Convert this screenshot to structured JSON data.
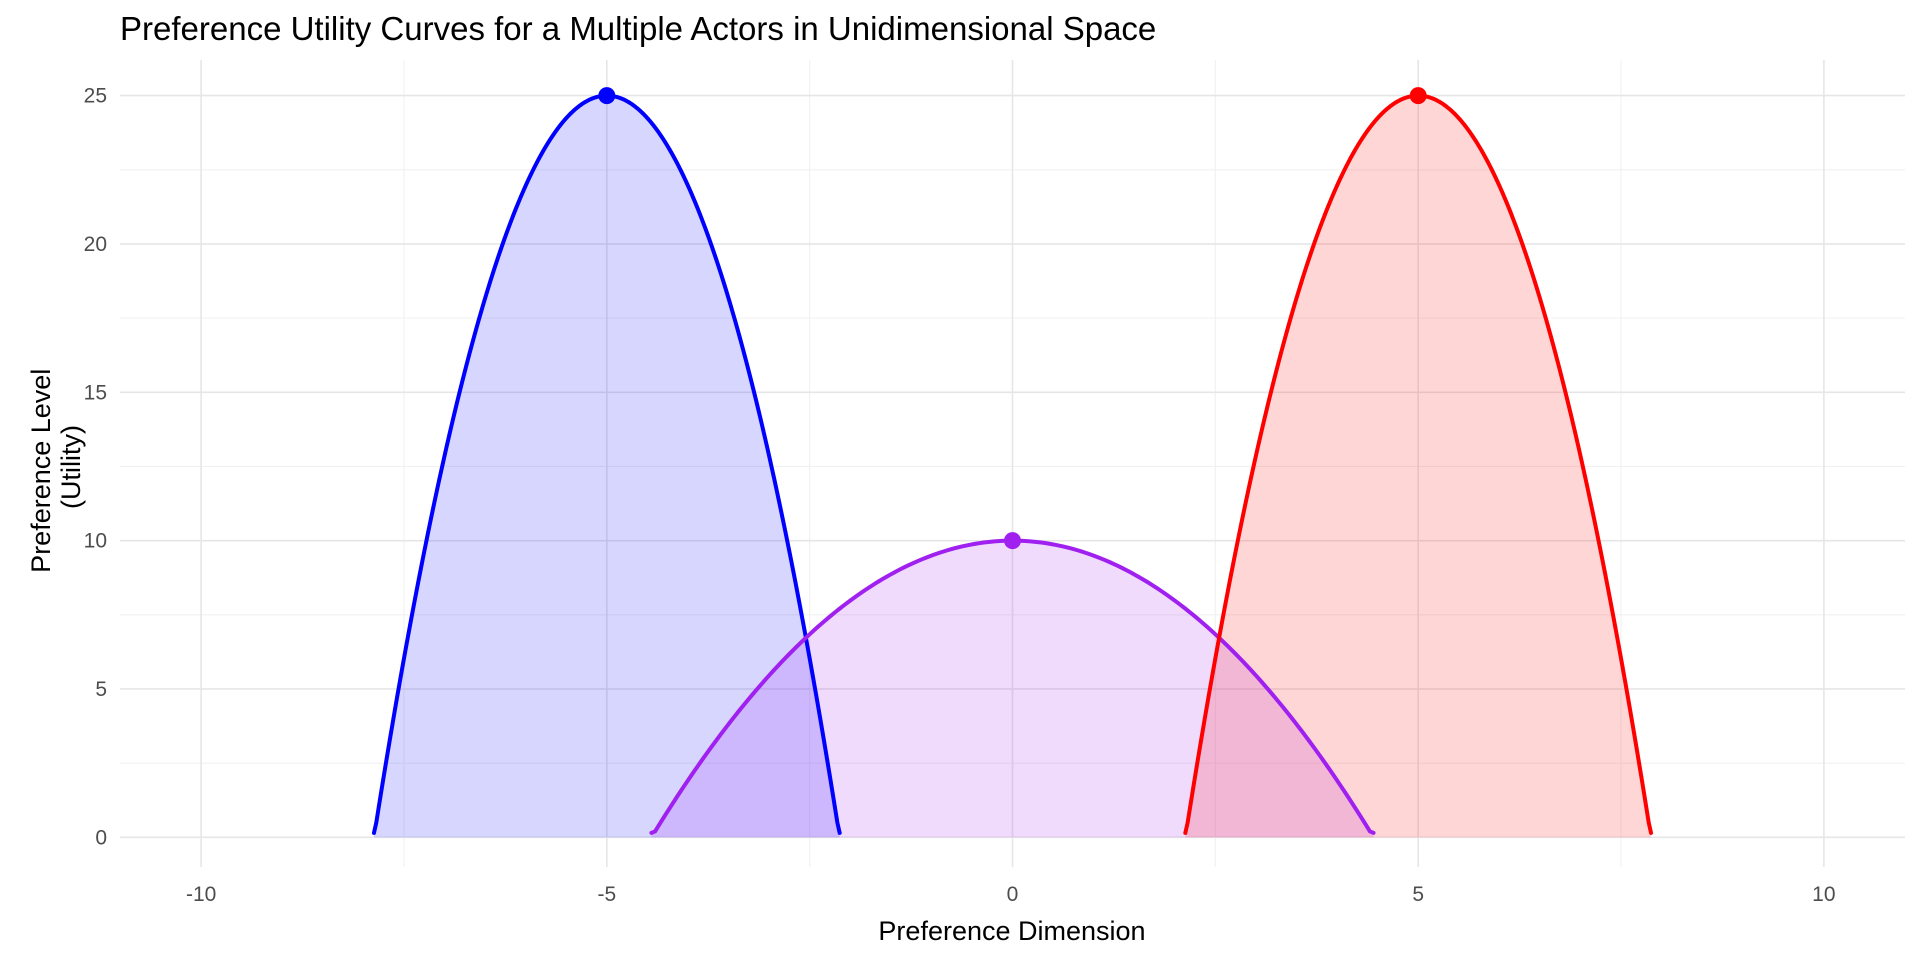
{
  "chart_data": {
    "type": "area",
    "title": "Preference Utility Curves for a Multiple Actors in Unidimensional Space",
    "xlabel": "Preference Dimension",
    "ylabel_lines": [
      "Preference Level",
      "(Utility)"
    ],
    "xlim": [
      -11,
      11
    ],
    "ylim": [
      -1,
      26.2
    ],
    "x_ticks": [
      -10,
      -5,
      0,
      5,
      10
    ],
    "y_ticks": [
      0,
      5,
      10,
      15,
      20,
      25
    ],
    "grid": true,
    "legend": "none",
    "series": [
      {
        "ideal_point": -5,
        "peak_utility": 25,
        "curve": "utility = 25 - 3*(x + 5)^2",
        "x_range": [
          -7.87,
          -2.13
        ],
        "color": "#0000ff",
        "fill": "#0000ff",
        "fill_opacity": 0.16
      },
      {
        "ideal_point": 0,
        "peak_utility": 10,
        "curve": "utility = 10 - 0.5*x^2",
        "x_range": [
          -4.45,
          4.45
        ],
        "color": "#a020f0",
        "fill": "#a020f0",
        "fill_opacity": 0.16
      },
      {
        "ideal_point": 5,
        "peak_utility": 25,
        "curve": "utility = 25 - 3*(x - 5)^2",
        "x_range": [
          2.13,
          7.87
        ],
        "color": "#ff0000",
        "fill": "#ff0000",
        "fill_opacity": 0.16
      }
    ],
    "points": [
      {
        "x": -5,
        "y": 25,
        "color": "#0000ff"
      },
      {
        "x": 0,
        "y": 10,
        "color": "#a020f0"
      },
      {
        "x": 5,
        "y": 25,
        "color": "#ff0000"
      }
    ]
  }
}
